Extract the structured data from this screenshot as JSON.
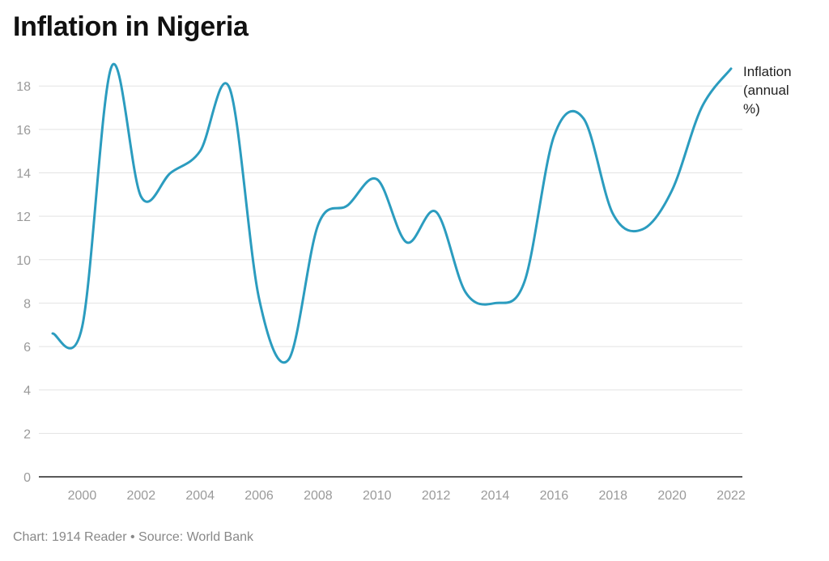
{
  "title": "Inflation in Nigeria",
  "footer": "Chart: 1914 Reader • Source: World Bank",
  "colors": {
    "line": "#2b9cbf",
    "grid": "#e3e3e3",
    "axis": "#222222"
  },
  "chart_data": {
    "type": "line",
    "title": "Inflation in Nigeria",
    "xlabel": "",
    "ylabel": "",
    "x_ticks": [
      "2000",
      "2002",
      "2004",
      "2006",
      "2008",
      "2010",
      "2012",
      "2014",
      "2016",
      "2018",
      "2020",
      "2022"
    ],
    "y_ticks": [
      "0",
      "2",
      "4",
      "6",
      "8",
      "10",
      "12",
      "14",
      "16",
      "18"
    ],
    "xlim": [
      1999,
      2022
    ],
    "ylim": [
      0,
      19.5
    ],
    "grid": true,
    "series": [
      {
        "name": "Inflation (annual %)",
        "label_lines": [
          "Inflation",
          "(annual",
          "%)"
        ],
        "x": [
          1999,
          2000,
          2001,
          2002,
          2003,
          2004,
          2005,
          2006,
          2007,
          2008,
          2009,
          2010,
          2011,
          2012,
          2013,
          2014,
          2015,
          2016,
          2017,
          2018,
          2019,
          2020,
          2021,
          2022
        ],
        "values": [
          6.6,
          6.9,
          18.9,
          12.9,
          14.0,
          15.0,
          17.9,
          8.2,
          5.4,
          11.6,
          12.5,
          13.7,
          10.8,
          12.2,
          8.5,
          8.0,
          9.0,
          15.7,
          16.5,
          12.1,
          11.4,
          13.2,
          17.0,
          18.8
        ]
      }
    ]
  }
}
